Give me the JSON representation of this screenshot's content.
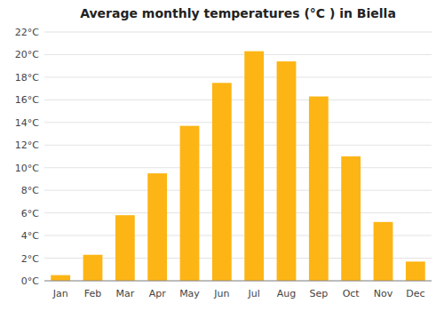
{
  "chart_data": {
    "type": "bar",
    "title": "Average monthly temperatures (°C ) in Biella",
    "categories": [
      "Jan",
      "Feb",
      "Mar",
      "Apr",
      "May",
      "Jun",
      "Jul",
      "Aug",
      "Sep",
      "Oct",
      "Nov",
      "Dec"
    ],
    "values": [
      0.5,
      2.3,
      5.8,
      9.5,
      13.7,
      17.5,
      20.3,
      19.4,
      16.3,
      11.0,
      5.2,
      1.7
    ],
    "color": "#FDB515",
    "ylim": [
      0,
      22
    ],
    "yticks": [
      {
        "value": 0,
        "label": "0°C"
      },
      {
        "value": 2,
        "label": "2°C"
      },
      {
        "value": 4,
        "label": "4°C"
      },
      {
        "value": 6,
        "label": "6°C"
      },
      {
        "value": 8,
        "label": "8°C"
      },
      {
        "value": 10,
        "label": "10°C"
      },
      {
        "value": 12,
        "label": "12°C"
      },
      {
        "value": 14,
        "label": "14°C"
      },
      {
        "value": 16,
        "label": "16°C"
      },
      {
        "value": 18,
        "label": "18°C"
      },
      {
        "value": 20,
        "label": "20°C"
      },
      {
        "value": 22,
        "label": "22°C"
      }
    ],
    "grid": true
  }
}
